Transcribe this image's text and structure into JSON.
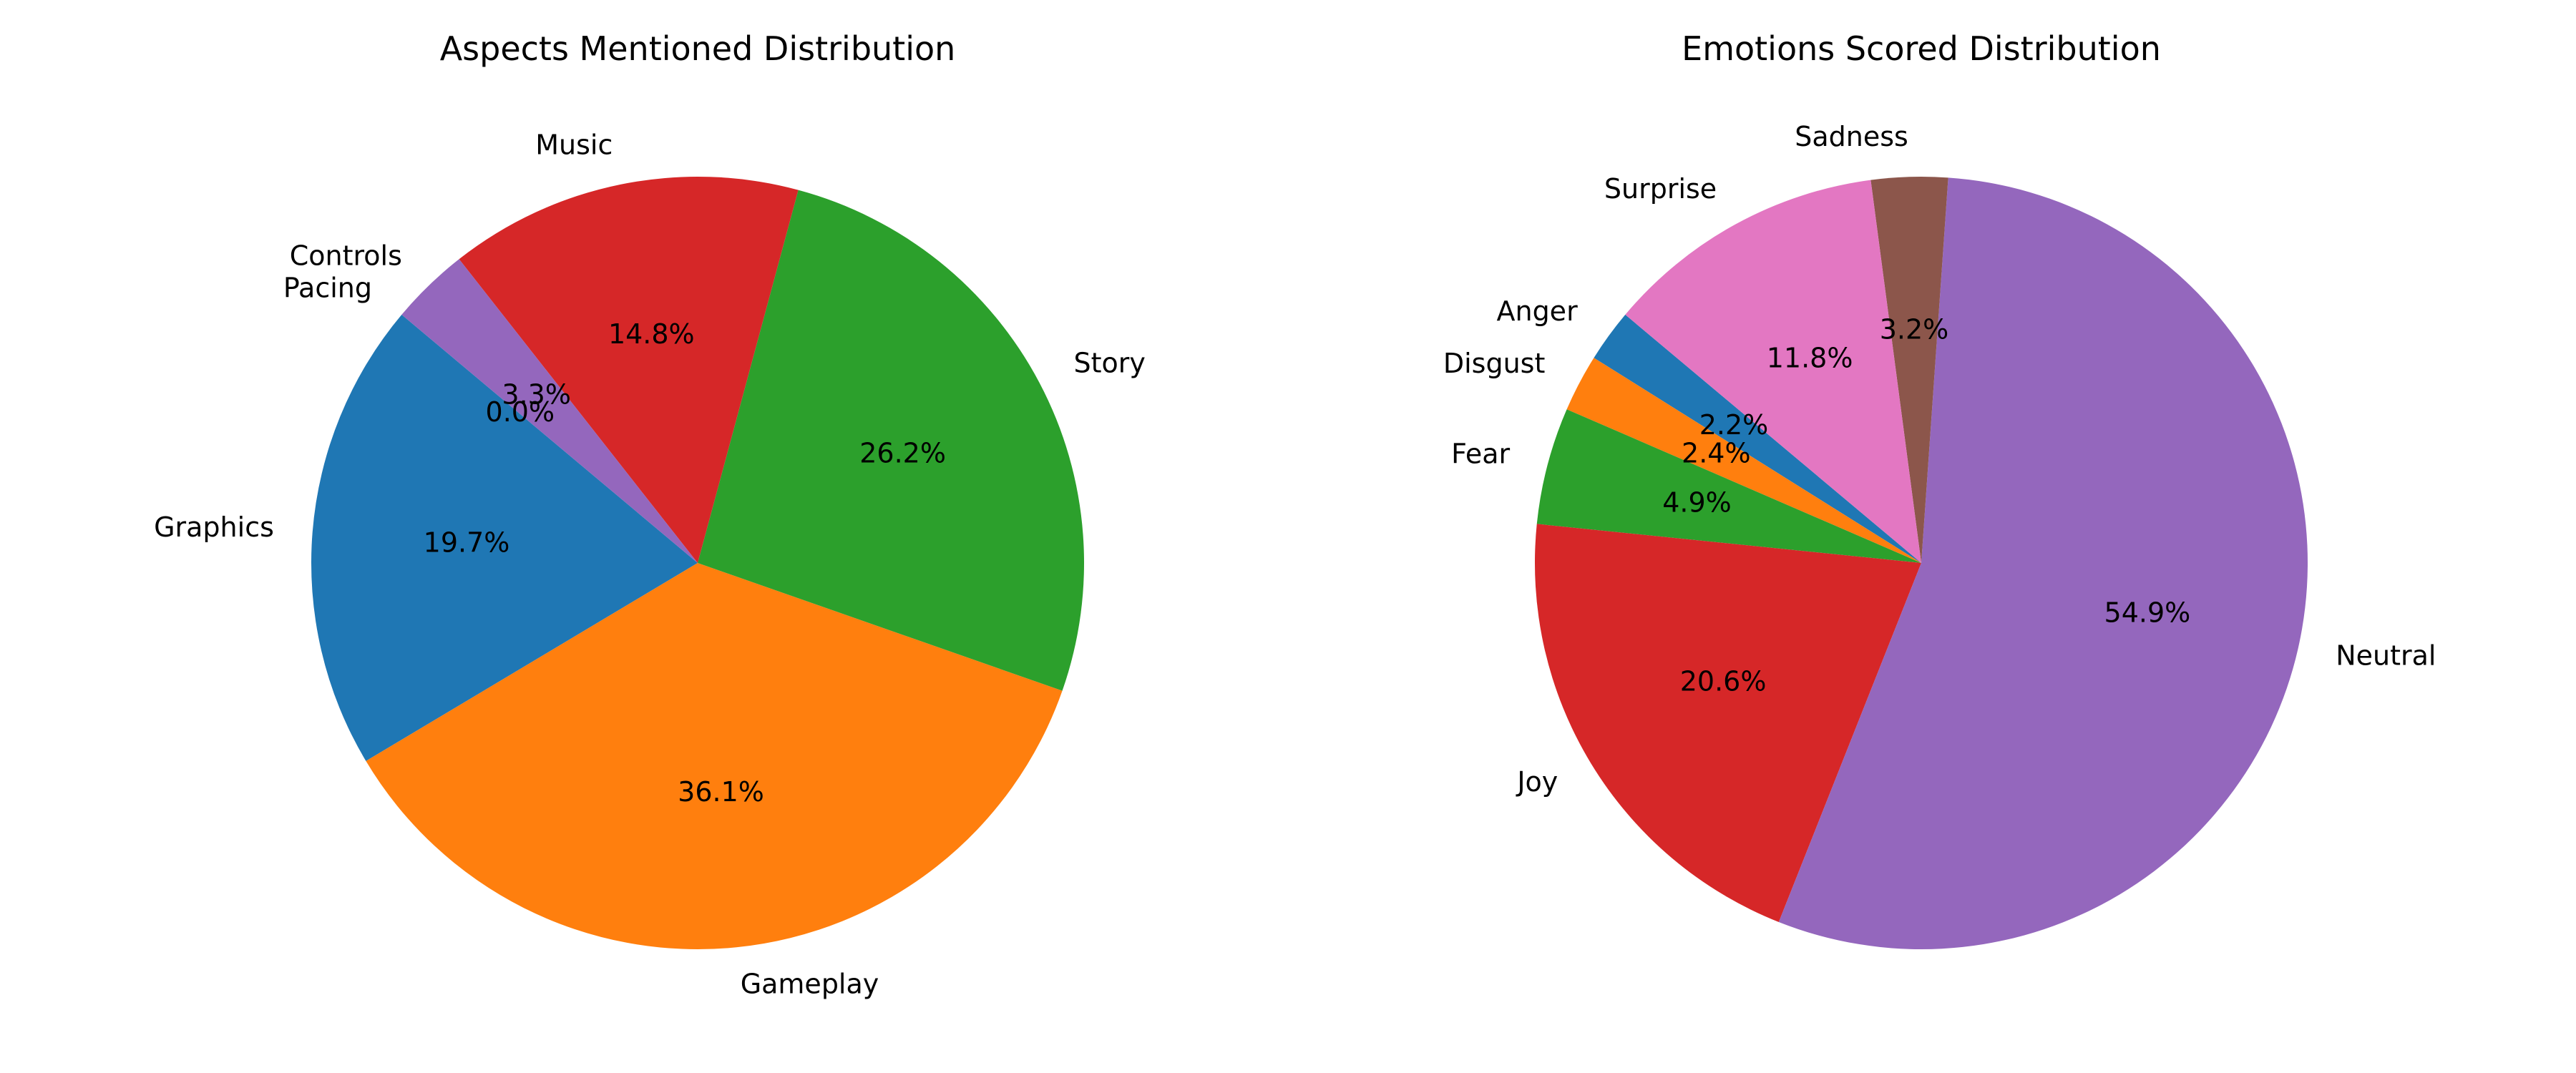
{
  "chart_data": [
    {
      "type": "pie",
      "title": "Aspects Mentioned Distribution",
      "startangle_deg": 140,
      "direction": "counterclockwise",
      "autopct": "%1.1f%%",
      "slices": [
        {
          "label": "Graphics",
          "value": 19.7,
          "pct_text": "19.7%",
          "color": "#1f77b4"
        },
        {
          "label": "Gameplay",
          "value": 36.1,
          "pct_text": "36.1%",
          "color": "#ff7f0e"
        },
        {
          "label": "Story",
          "value": 26.2,
          "pct_text": "26.2%",
          "color": "#2ca02c"
        },
        {
          "label": "Music",
          "value": 14.8,
          "pct_text": "14.8%",
          "color": "#d62728"
        },
        {
          "label": "Controls",
          "value": 3.3,
          "pct_text": "3.3%",
          "color": "#9467bd"
        },
        {
          "label": "Pacing",
          "value": 0.0,
          "pct_text": "0.0%",
          "color": "#8c564b"
        }
      ]
    },
    {
      "type": "pie",
      "title": "Emotions Scored Distribution",
      "startangle_deg": 140,
      "direction": "counterclockwise",
      "autopct": "%1.1f%%",
      "slices": [
        {
          "label": "Anger",
          "value": 2.2,
          "pct_text": "2.2%",
          "color": "#1f77b4"
        },
        {
          "label": "Disgust",
          "value": 2.4,
          "pct_text": "2.4%",
          "color": "#ff7f0e"
        },
        {
          "label": "Fear",
          "value": 4.9,
          "pct_text": "4.9%",
          "color": "#2ca02c"
        },
        {
          "label": "Joy",
          "value": 20.6,
          "pct_text": "20.6%",
          "color": "#d62728"
        },
        {
          "label": "Neutral",
          "value": 54.9,
          "pct_text": "54.9%",
          "color": "#9467bd"
        },
        {
          "label": "Sadness",
          "value": 3.2,
          "pct_text": "3.2%",
          "color": "#8c564b"
        },
        {
          "label": "Surprise",
          "value": 11.8,
          "pct_text": "11.8%",
          "color": "#e377c2"
        }
      ]
    }
  ]
}
